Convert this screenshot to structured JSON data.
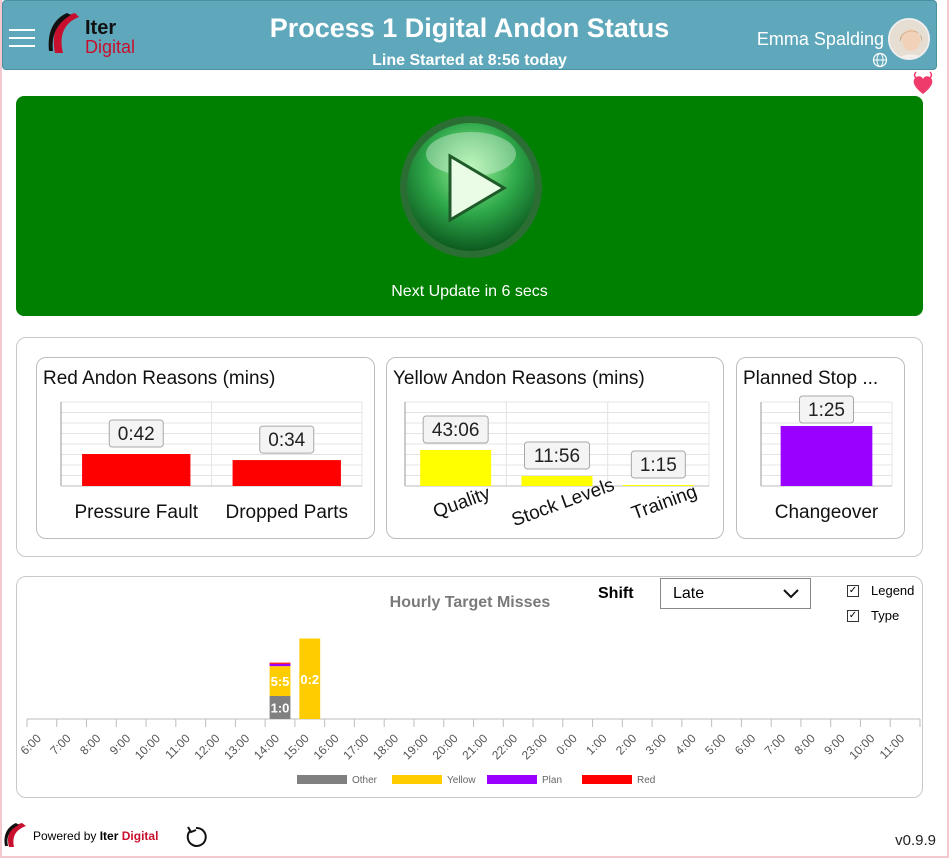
{
  "header": {
    "title": "Process 1 Digital Andon Status",
    "subtitle": "Line Started at 8:56 today",
    "username": "Emma Spalding",
    "logo_word1": "Iter",
    "logo_word2": "Digital",
    "bg_color": "#5fa8bb"
  },
  "status": {
    "next_update": "Next Update in 6 secs",
    "color": "#008000"
  },
  "cards": {
    "red": {
      "title": "Red Andon Reasons (mins)"
    },
    "yellow": {
      "title": "Yellow Andon Reasons (mins)"
    },
    "planned": {
      "title": "Planned Stop ..."
    }
  },
  "chart_data": [
    {
      "type": "bar",
      "title": "Red Andon Reasons (mins)",
      "categories": [
        "Pressure Fault",
        "Dropped Parts"
      ],
      "values": [
        0.7,
        0.567
      ],
      "labels": [
        "0:42",
        "0:34"
      ],
      "color": "#ff0000"
    },
    {
      "type": "bar",
      "title": "Yellow Andon Reasons (mins)",
      "categories": [
        "Quality",
        "Stock Levels",
        "Training"
      ],
      "values": [
        43.1,
        11.93,
        1.25
      ],
      "labels": [
        "43:06",
        "11:56",
        "1:15"
      ],
      "color": "#ffff00"
    },
    {
      "type": "bar",
      "title": "Planned Stop ...",
      "categories": [
        "Changeover"
      ],
      "values": [
        1.417
      ],
      "labels": [
        "1:25"
      ],
      "color": "#9900ff"
    },
    {
      "type": "bar",
      "title": "Hourly Target Misses",
      "categories": [
        "6:00",
        "7:00",
        "8:00",
        "9:00",
        "10:00",
        "11:00",
        "12:00",
        "13:00",
        "14:00",
        "15:00",
        "16:00",
        "17:00",
        "18:00",
        "19:00",
        "20:00",
        "21:00",
        "22:00",
        "23:00",
        "0:00",
        "1:00",
        "2:00",
        "3:00",
        "4:00",
        "5:00",
        "6:00",
        "7:00",
        "8:00",
        "9:00",
        "10:00",
        "11:00"
      ],
      "series": [
        {
          "name": "Other",
          "color": "#808080",
          "values": [
            0,
            0,
            0,
            0,
            0,
            0,
            0,
            0,
            1,
            0,
            0,
            0,
            0,
            0,
            0,
            0,
            0,
            0,
            0,
            0,
            0,
            0,
            0,
            0,
            0,
            0,
            0,
            0,
            0,
            0
          ],
          "labels": {
            "8": "1:0"
          }
        },
        {
          "name": "Yellow",
          "color": "#ffcc00",
          "values": [
            0,
            0,
            0,
            0,
            0,
            0,
            0,
            0,
            1.3,
            3.5,
            0,
            0,
            0,
            0,
            0,
            0,
            0,
            0,
            0,
            0,
            0,
            0,
            0,
            0,
            0,
            0,
            0,
            0,
            0,
            0
          ],
          "labels": {
            "8": "5:5",
            "9": "0:2"
          }
        },
        {
          "name": "Plan",
          "color": "#9900ff",
          "values": [
            0,
            0,
            0,
            0,
            0,
            0,
            0,
            0,
            0.1,
            0,
            0,
            0,
            0,
            0,
            0,
            0,
            0,
            0,
            0,
            0,
            0,
            0,
            0,
            0,
            0,
            0,
            0,
            0,
            0,
            0
          ]
        },
        {
          "name": "Red",
          "color": "#ff0000",
          "values": [
            0,
            0,
            0,
            0,
            0,
            0,
            0,
            0,
            0.05,
            0,
            0,
            0,
            0,
            0,
            0,
            0,
            0,
            0,
            0,
            0,
            0,
            0,
            0,
            0,
            0,
            0,
            0,
            0,
            0,
            0
          ]
        }
      ],
      "ylim": [
        0,
        4
      ]
    }
  ],
  "shift": {
    "label": "Shift",
    "value": "Late"
  },
  "toggles": {
    "legend": "Legend",
    "type": "Type"
  },
  "footer": {
    "powered_by": "Powered by",
    "brand_word1": "Iter",
    "brand_word2": "Digital",
    "version": "v0.9.9"
  }
}
